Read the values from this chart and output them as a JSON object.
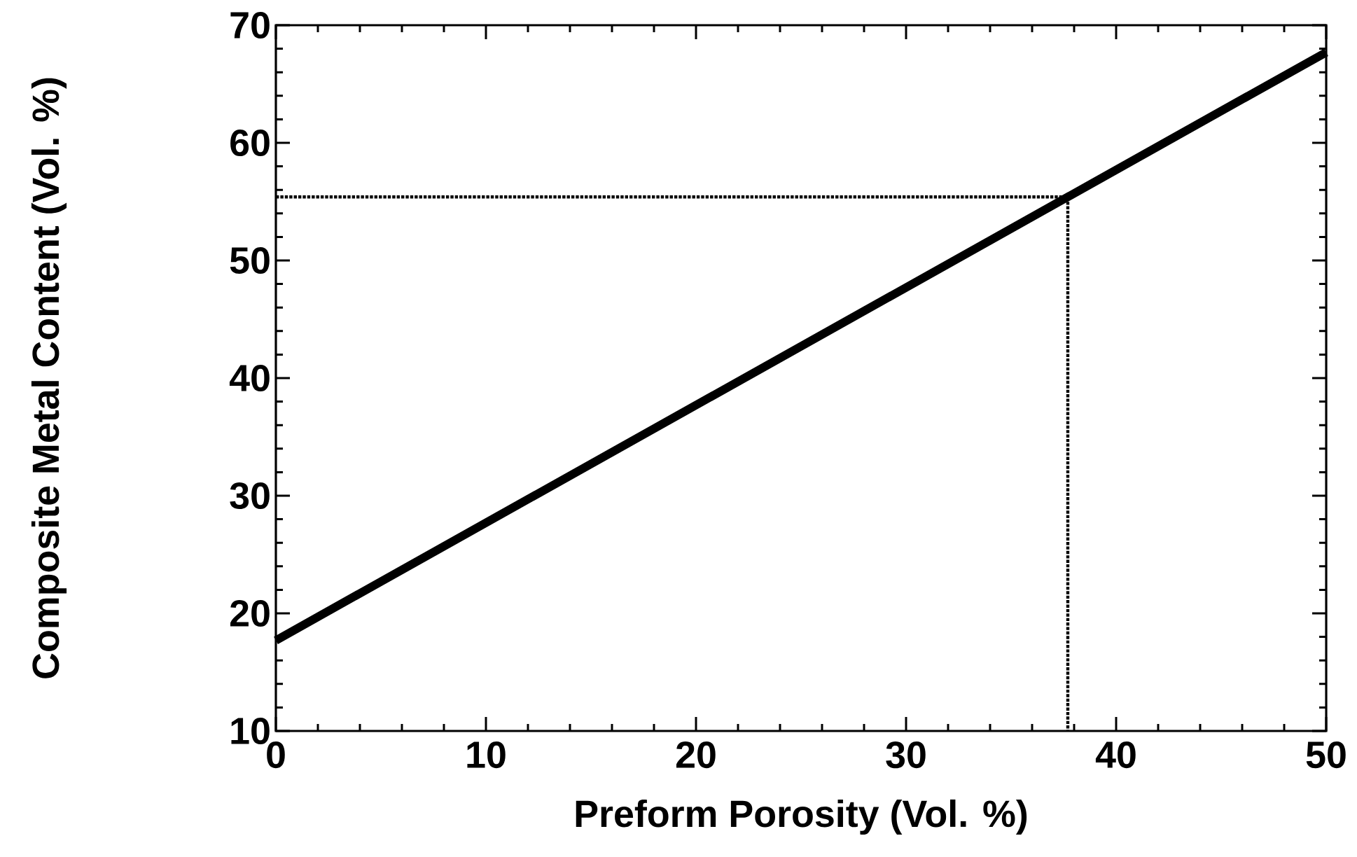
{
  "chart_data": {
    "type": "line",
    "xlabel": "Preform Porosity (Vol. %)",
    "ylabel": "Composite Metal Content (Vol. %)",
    "xlim": [
      0,
      50
    ],
    "ylim": [
      10,
      70
    ],
    "xticks": [
      0,
      10,
      20,
      30,
      40,
      50
    ],
    "yticks": [
      10,
      20,
      30,
      40,
      50,
      60,
      70
    ],
    "series": [
      {
        "color": "#000000",
        "x": [
          0,
          50
        ],
        "values": [
          17.7,
          67.7
        ],
        "line_style": "solid"
      },
      {
        "color": "#000000",
        "x": [
          0,
          37.7,
          37.7
        ],
        "values": [
          55.4,
          55.4,
          10
        ],
        "line_style": "dotted"
      }
    ]
  }
}
